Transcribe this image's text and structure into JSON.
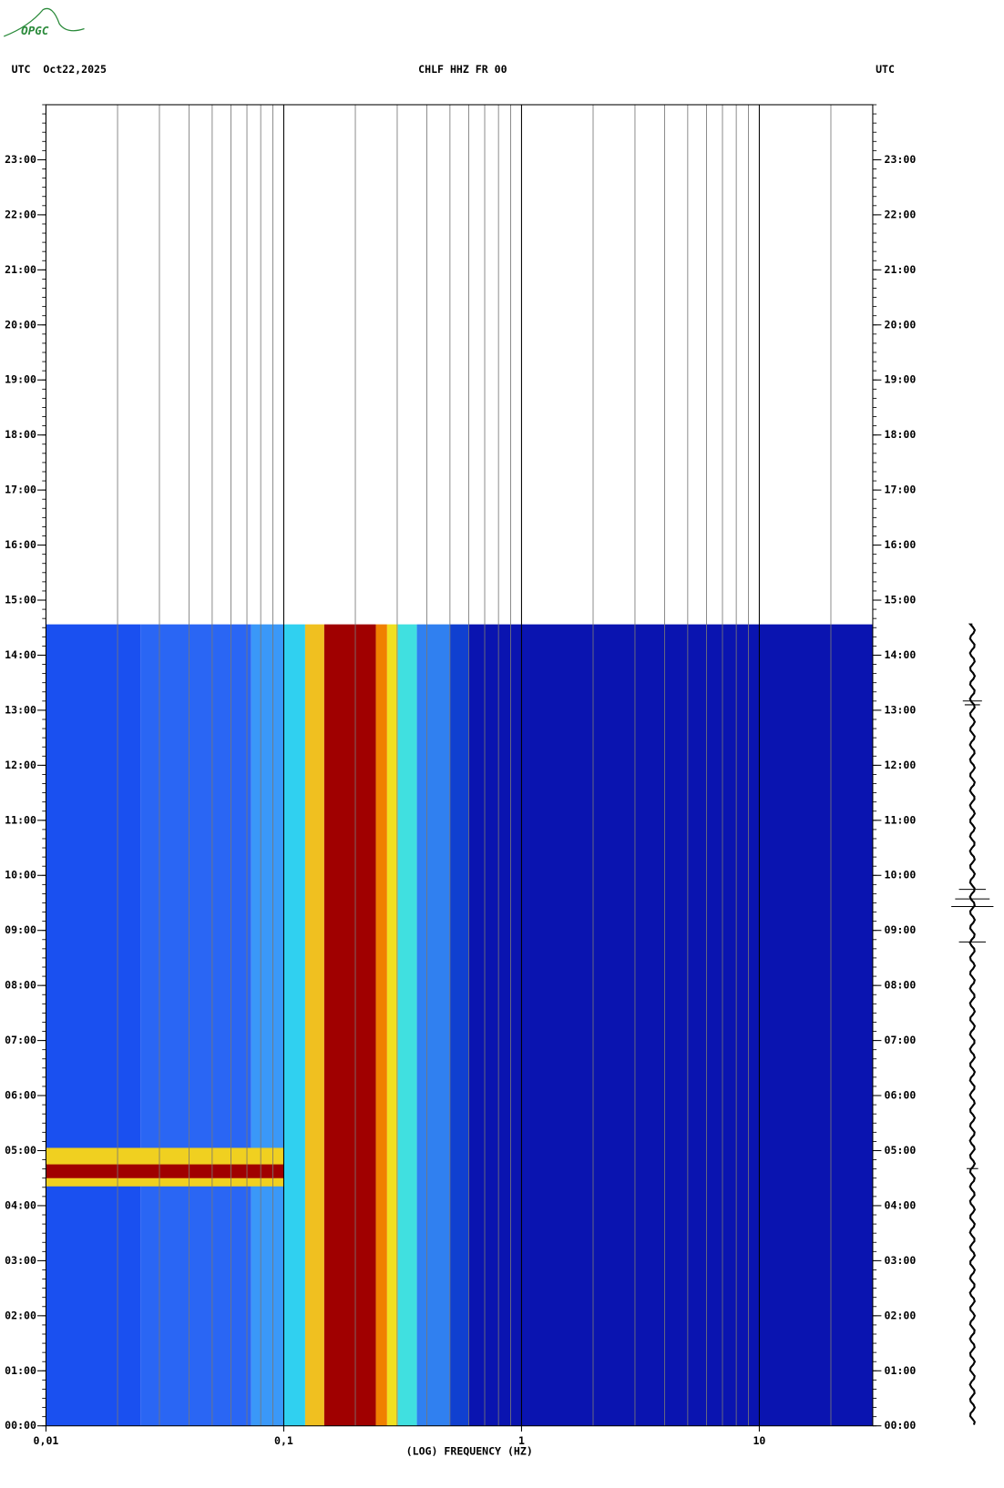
{
  "logo": "OPGC",
  "chart_data": {
    "type": "spectrogram",
    "title": "CHLF HHZ FR 00",
    "left_header": "UTC  Oct22,2025",
    "right_header": "UTC",
    "xlabel": "(LOG) FREQUENCY (HZ)",
    "xscale": "log",
    "xlim": [
      0.01,
      30
    ],
    "ylim": [
      0,
      24
    ],
    "xticks": [
      {
        "value": 0.01,
        "label": "0,01"
      },
      {
        "value": 0.1,
        "label": "0,1"
      },
      1,
      10
    ],
    "xgrid": [
      0.02,
      0.03,
      0.04,
      0.05,
      0.06,
      0.07,
      0.08,
      0.09,
      0.2,
      0.3,
      0.4,
      0.5,
      0.6,
      0.7,
      0.8,
      0.9,
      2,
      3,
      4,
      5,
      6,
      7,
      8,
      9,
      20
    ],
    "yticks": [
      {
        "value": 0,
        "label": "00:00"
      },
      {
        "value": 1,
        "label": "01:00"
      },
      {
        "value": 2,
        "label": "02:00"
      },
      {
        "value": 3,
        "label": "03:00"
      },
      {
        "value": 4,
        "label": "04:00"
      },
      {
        "value": 5,
        "label": "05:00"
      },
      {
        "value": 6,
        "label": "06:00"
      },
      {
        "value": 7,
        "label": "07:00"
      },
      {
        "value": 8,
        "label": "08:00"
      },
      {
        "value": 9,
        "label": "09:00"
      },
      {
        "value": 10,
        "label": "10:00"
      },
      {
        "value": 11,
        "label": "11:00"
      },
      {
        "value": 12,
        "label": "12:00"
      },
      {
        "value": 13,
        "label": "13:00"
      },
      {
        "value": 14,
        "label": "14:00"
      },
      {
        "value": 15,
        "label": "15:00"
      },
      {
        "value": 16,
        "label": "16:00"
      },
      {
        "value": 17,
        "label": "17:00"
      },
      {
        "value": 18,
        "label": "18:00"
      },
      {
        "value": 19,
        "label": "19:00"
      },
      {
        "value": 20,
        "label": "20:00"
      },
      {
        "value": 21,
        "label": "21:00"
      },
      {
        "value": 22,
        "label": "22:00"
      },
      {
        "value": 23,
        "label": "23:00"
      }
    ],
    "bands": [
      {
        "f": [
          0.01,
          0.025
        ],
        "t": [
          0,
          14.56
        ],
        "color": "#1a50f0"
      },
      {
        "f": [
          0.025,
          0.073
        ],
        "t": [
          0,
          14.56
        ],
        "color": "#2a66f4"
      },
      {
        "f": [
          0.073,
          0.1
        ],
        "t": [
          0,
          14.56
        ],
        "color": "#3a98f8"
      },
      {
        "f": [
          0.1,
          0.123
        ],
        "t": [
          0,
          14.56
        ],
        "color": "#30d0f0"
      },
      {
        "f": [
          0.123,
          0.148
        ],
        "t": [
          0,
          14.56
        ],
        "color": "#f0c020"
      },
      {
        "f": [
          0.148,
          0.244
        ],
        "t": [
          0,
          14.56
        ],
        "color": "#a00000"
      },
      {
        "f": [
          0.244,
          0.272
        ],
        "t": [
          0,
          14.56
        ],
        "color": "#f08000"
      },
      {
        "f": [
          0.272,
          0.302
        ],
        "t": [
          0,
          14.56
        ],
        "color": "#f0e020"
      },
      {
        "f": [
          0.302,
          0.363
        ],
        "t": [
          0,
          14.56
        ],
        "color": "#40e0e0"
      },
      {
        "f": [
          0.363,
          0.5
        ],
        "t": [
          0,
          14.56
        ],
        "color": "#3080f0"
      },
      {
        "f": [
          0.5,
          0.6
        ],
        "t": [
          0,
          14.56
        ],
        "color": "#1040d0"
      },
      {
        "f": [
          0.6,
          30
        ],
        "t": [
          0,
          14.56
        ],
        "color": "#0a14b0"
      },
      {
        "f": [
          0.01,
          0.1
        ],
        "t": [
          4.35,
          5.05
        ],
        "color": "#f0d020"
      },
      {
        "f": [
          0.01,
          0.1
        ],
        "t": [
          4.5,
          4.75
        ],
        "color": "#a00000"
      }
    ]
  }
}
